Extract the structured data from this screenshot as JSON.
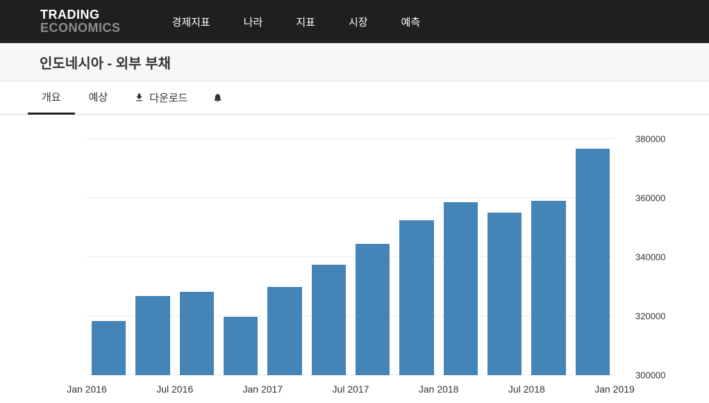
{
  "header": {
    "logo_line1": "TRADING",
    "logo_line2": "ECONOMICS",
    "nav": [
      {
        "label": "경제지표"
      },
      {
        "label": "나라"
      },
      {
        "label": "지표"
      },
      {
        "label": "시장"
      },
      {
        "label": "예측"
      }
    ]
  },
  "page": {
    "title": "인도네시아 - 외부 부채"
  },
  "tabs": {
    "items": [
      {
        "label": "개요",
        "active": true
      },
      {
        "label": "예상",
        "active": false
      }
    ],
    "download_label": "다운로드",
    "icons": [
      "download-icon",
      "bell-icon"
    ]
  },
  "colors": {
    "header_bg": "#1f1f1f",
    "bar": "#4584b6",
    "active_tab_underline": "#222222"
  },
  "chart_data": {
    "type": "bar",
    "title": "Indonesia External Debt",
    "categories": [
      "2016 Q1",
      "2016 Q2",
      "2016 Q3",
      "2016 Q4",
      "2017 Q1",
      "2017 Q2",
      "2017 Q3",
      "2017 Q4",
      "2018 Q1",
      "2018 Q2",
      "2018 Q3",
      "2018 Q4"
    ],
    "values": [
      318300,
      326800,
      328300,
      319800,
      330000,
      337300,
      344500,
      352400,
      358700,
      355100,
      359000,
      376700
    ],
    "xticks": [
      "Jan 2016",
      "Jul 2016",
      "Jan 2017",
      "Jul 2017",
      "Jan 2018",
      "Jul 2018",
      "Jan 2019"
    ],
    "yticks": [
      300000,
      320000,
      340000,
      360000,
      380000
    ],
    "ylim": [
      300000,
      380000
    ],
    "xlabel": "",
    "ylabel": "",
    "y_axis_position": "right",
    "grid": true,
    "legend": false,
    "bar_color": "#4584b6"
  }
}
